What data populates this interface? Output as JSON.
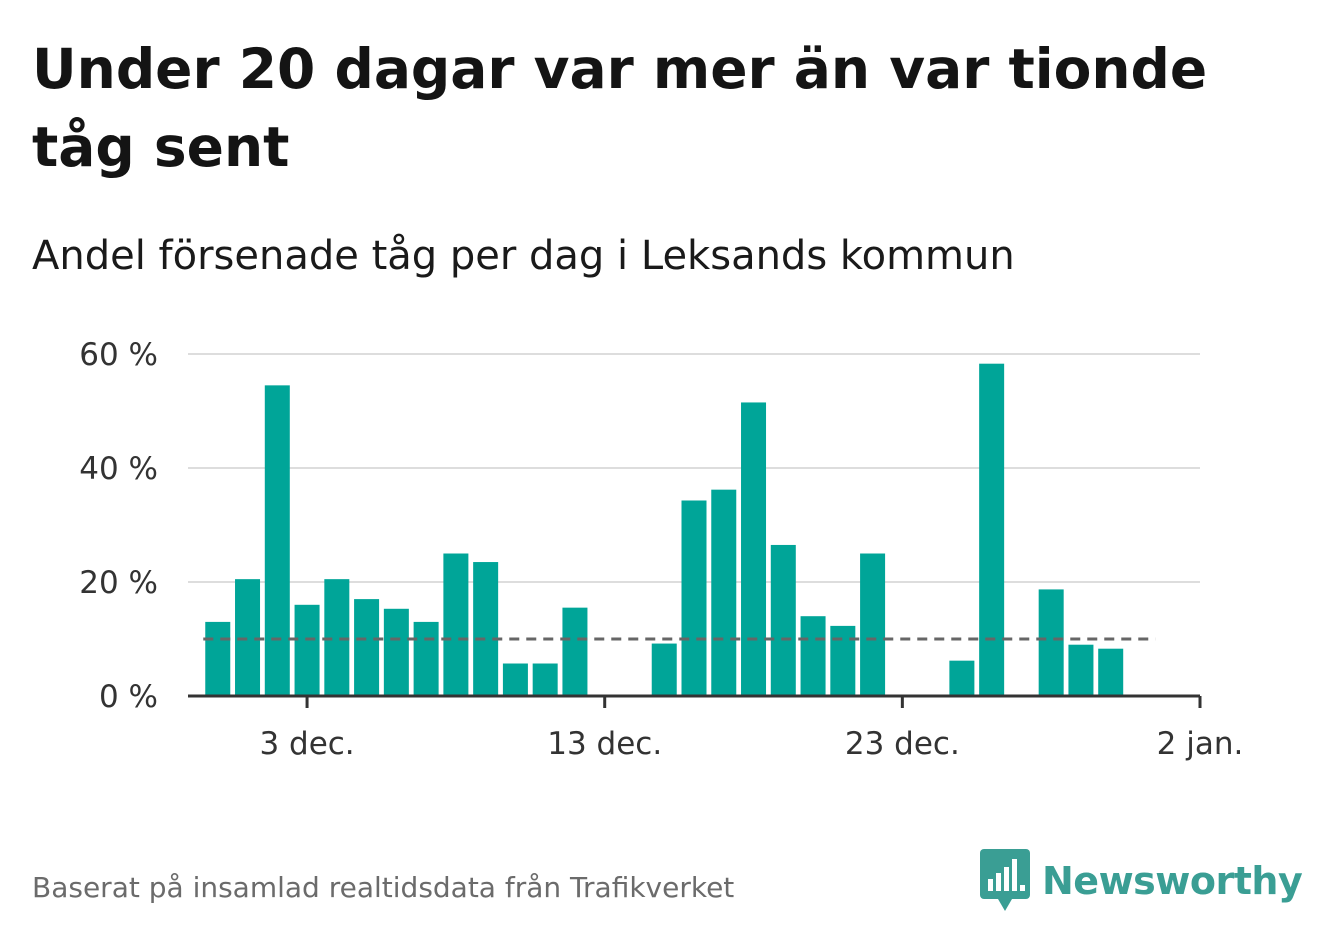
{
  "title": "Under 20 dagar var mer än var tionde tåg sent",
  "subtitle": "Andel försenade tåg per dag i Leksands kommun",
  "footer": {
    "source": "Baserat på insamlad realtidsdata från Trafikverket",
    "brand": "Newsworthy"
  },
  "colors": {
    "bar": "#00a598",
    "reference_line": "#666666",
    "grid": "#dddddd",
    "brand": "#3a9e94"
  },
  "chart_data": {
    "type": "bar",
    "x_start": "2022-11-29",
    "x_end": "2023-01-02",
    "x_tick_labels": [
      {
        "date": "2022-12-03",
        "label": "3 dec."
      },
      {
        "date": "2022-12-13",
        "label": "13 dec."
      },
      {
        "date": "2022-12-23",
        "label": "23 dec."
      },
      {
        "date": "2023-01-02",
        "label": "2 jan."
      }
    ],
    "y_tick_labels": [
      {
        "value": 0,
        "label": "0 %"
      },
      {
        "value": 20,
        "label": "20 %"
      },
      {
        "value": 40,
        "label": "40 %"
      },
      {
        "value": 60,
        "label": "60 %"
      }
    ],
    "ylim": [
      0,
      60
    ],
    "unit": "%",
    "reference_line": 10,
    "grid": true,
    "series": [
      {
        "points": [
          {
            "date": "2022-11-30",
            "value": 13
          },
          {
            "date": "2022-12-01",
            "value": 20.5
          },
          {
            "date": "2022-12-02",
            "value": 54.5
          },
          {
            "date": "2022-12-03",
            "value": 16
          },
          {
            "date": "2022-12-04",
            "value": 20.5
          },
          {
            "date": "2022-12-05",
            "value": 17
          },
          {
            "date": "2022-12-06",
            "value": 15.3
          },
          {
            "date": "2022-12-07",
            "value": 13
          },
          {
            "date": "2022-12-08",
            "value": 25
          },
          {
            "date": "2022-12-09",
            "value": 23.5
          },
          {
            "date": "2022-12-10",
            "value": 5.7
          },
          {
            "date": "2022-12-11",
            "value": 5.7
          },
          {
            "date": "2022-12-12",
            "value": 15.5
          },
          {
            "date": "2022-12-15",
            "value": 9.2
          },
          {
            "date": "2022-12-16",
            "value": 34.3
          },
          {
            "date": "2022-12-17",
            "value": 36.2
          },
          {
            "date": "2022-12-18",
            "value": 51.5
          },
          {
            "date": "2022-12-19",
            "value": 26.5
          },
          {
            "date": "2022-12-20",
            "value": 14
          },
          {
            "date": "2022-12-21",
            "value": 12.3
          },
          {
            "date": "2022-12-22",
            "value": 25
          },
          {
            "date": "2022-12-25",
            "value": 6.2
          },
          {
            "date": "2022-12-26",
            "value": 58.3
          },
          {
            "date": "2022-12-28",
            "value": 18.7
          },
          {
            "date": "2022-12-29",
            "value": 9
          },
          {
            "date": "2022-12-30",
            "value": 8.3
          }
        ]
      }
    ]
  }
}
